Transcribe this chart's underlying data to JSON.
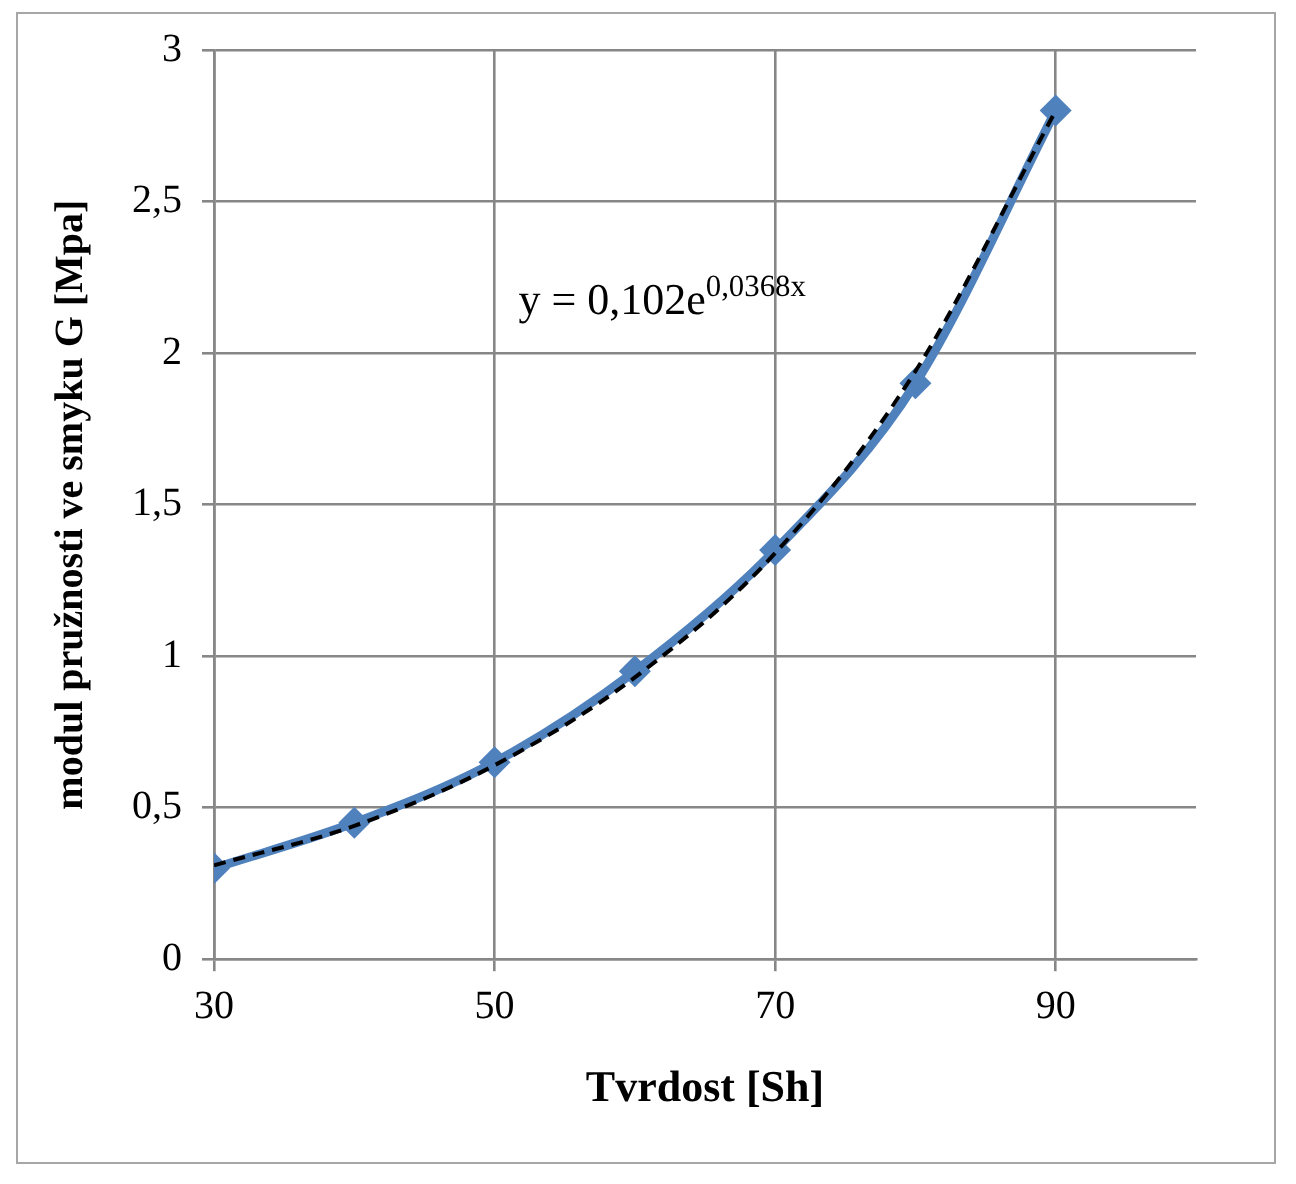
{
  "chart_data": {
    "type": "line",
    "xlabel": "Tvrdost [Sh]",
    "ylabel": "modul pružnosti ve smyku G [Mpa]",
    "x": [
      30,
      40,
      50,
      60,
      70,
      80,
      90
    ],
    "series": [
      {
        "color": "#4f81bd",
        "values": [
          0.3,
          0.45,
          0.65,
          0.95,
          1.35,
          1.9,
          2.8
        ],
        "marker": "diamond",
        "line_style": "solid"
      },
      {
        "type": "line",
        "color": "#000000",
        "x": [
          30,
          40,
          50,
          60,
          70,
          80,
          90
        ],
        "values": [
          0.31,
          0.44,
          0.64,
          0.93,
          1.34,
          1.94,
          2.8
        ],
        "marker": "none",
        "line_style": "dashed"
      }
    ],
    "xlim": [
      30,
      100
    ],
    "xticks": [
      30,
      50,
      70,
      90
    ],
    "ylim": [
      0,
      3
    ],
    "yticks": [
      0,
      {
        "value": 0.5,
        "label": "0,5"
      },
      1,
      {
        "value": 1.5,
        "label": "1,5"
      },
      2,
      {
        "value": 2.5,
        "label": "2,5"
      },
      3
    ],
    "grid": true,
    "legend": false,
    "annotations": [
      "y = 0,102e$^{0,0368x}$"
    ]
  }
}
